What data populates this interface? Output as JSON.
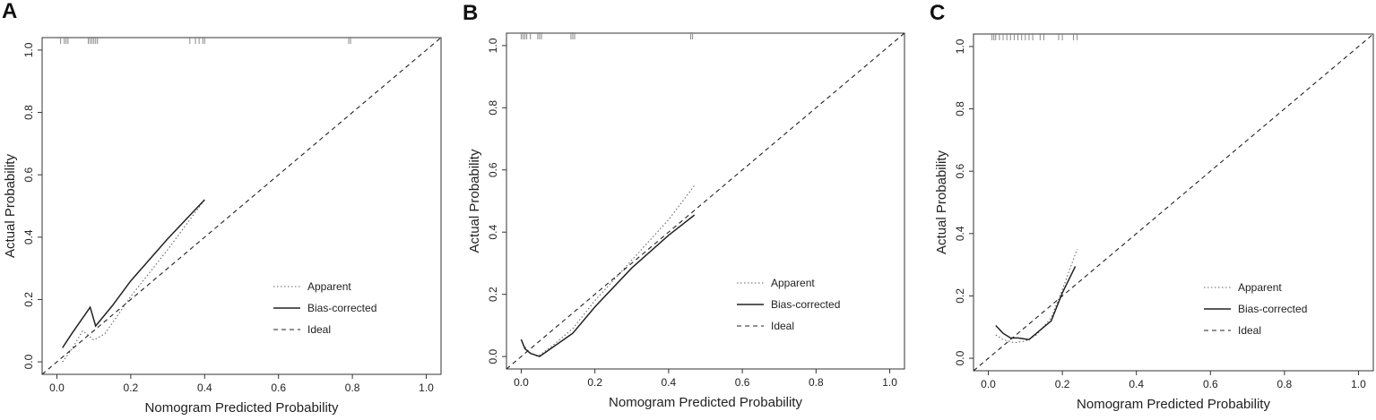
{
  "figure": {
    "panels": [
      {
        "letter": "A"
      },
      {
        "letter": "B"
      },
      {
        "letter": "C"
      }
    ]
  },
  "chart_data": [
    {
      "type": "line",
      "panel": "A",
      "xlabel": "Nomogram Predicted Probability",
      "ylabel": "Actual Probability",
      "xlim": [
        -0.04,
        1.04
      ],
      "ylim": [
        -0.04,
        1.04
      ],
      "xticks": [
        0.0,
        0.2,
        0.4,
        0.6,
        0.8,
        1.0
      ],
      "yticks": [
        0.0,
        0.2,
        0.4,
        0.6,
        0.8,
        1.0
      ],
      "xtick_labels": [
        "0.0",
        "0.2",
        "0.4",
        "0.6",
        "0.8",
        "1.0"
      ],
      "ytick_labels": [
        "0.0",
        "0.2",
        "0.4",
        "0.6",
        "0.8",
        "1.0"
      ],
      "legend_position": "bottom-right",
      "series": [
        {
          "name": "Apparent",
          "style": "dotted",
          "x": [
            0.015,
            0.04,
            0.07,
            0.1,
            0.13,
            0.2,
            0.3,
            0.4
          ],
          "y": [
            0.0,
            0.04,
            0.1,
            0.07,
            0.09,
            0.21,
            0.36,
            0.52
          ]
        },
        {
          "name": "Bias-corrected",
          "style": "solid",
          "x": [
            0.015,
            0.04,
            0.09,
            0.105,
            0.15,
            0.2,
            0.3,
            0.4
          ],
          "y": [
            0.045,
            0.09,
            0.175,
            0.115,
            0.18,
            0.26,
            0.395,
            0.52
          ]
        },
        {
          "name": "Ideal",
          "style": "dashed",
          "x": [
            -0.04,
            1.04
          ],
          "y": [
            -0.04,
            1.04
          ]
        }
      ],
      "rug": [
        0.01,
        0.02,
        0.025,
        0.03,
        0.085,
        0.09,
        0.095,
        0.1,
        0.105,
        0.11,
        0.36,
        0.375,
        0.385,
        0.395,
        0.4,
        0.79,
        0.795
      ]
    },
    {
      "type": "line",
      "panel": "B",
      "xlabel": "Nomogram Predicted Probability",
      "ylabel": "Actual Probability",
      "xlim": [
        -0.04,
        1.04
      ],
      "ylim": [
        -0.04,
        1.04
      ],
      "xticks": [
        0.0,
        0.2,
        0.4,
        0.6,
        0.8,
        1.0
      ],
      "yticks": [
        0.0,
        0.2,
        0.4,
        0.6,
        0.8,
        1.0
      ],
      "xtick_labels": [
        "0.0",
        "0.2",
        "0.4",
        "0.6",
        "0.8",
        "1.0"
      ],
      "ytick_labels": [
        "0.0",
        "0.2",
        "0.4",
        "0.6",
        "0.8",
        "1.0"
      ],
      "legend_position": "bottom-right",
      "series": [
        {
          "name": "Apparent",
          "style": "dotted",
          "x": [
            0.005,
            0.02,
            0.045,
            0.08,
            0.14,
            0.2,
            0.3,
            0.4,
            0.47
          ],
          "y": [
            0.04,
            0.015,
            0.0,
            0.03,
            0.09,
            0.18,
            0.31,
            0.44,
            0.55
          ]
        },
        {
          "name": "Bias-corrected",
          "style": "solid",
          "x": [
            0.0,
            0.01,
            0.025,
            0.05,
            0.08,
            0.14,
            0.2,
            0.3,
            0.4,
            0.47
          ],
          "y": [
            0.055,
            0.025,
            0.01,
            0.0,
            0.025,
            0.075,
            0.16,
            0.285,
            0.39,
            0.455
          ]
        },
        {
          "name": "Ideal",
          "style": "dashed",
          "x": [
            -0.04,
            1.04
          ],
          "y": [
            -0.04,
            1.04
          ]
        }
      ],
      "rug": [
        0.0,
        0.005,
        0.01,
        0.015,
        0.025,
        0.045,
        0.05,
        0.055,
        0.135,
        0.14,
        0.145,
        0.46,
        0.465
      ]
    },
    {
      "type": "line",
      "panel": "C",
      "xlabel": "Nomogram Predicted Probability",
      "ylabel": "Actual Probability",
      "xlim": [
        -0.04,
        1.04
      ],
      "ylim": [
        -0.04,
        1.04
      ],
      "xticks": [
        0.0,
        0.2,
        0.4,
        0.6,
        0.8,
        1.0
      ],
      "yticks": [
        0.0,
        0.2,
        0.4,
        0.6,
        0.8,
        1.0
      ],
      "xtick_labels": [
        "0.0",
        "0.2",
        "0.4",
        "0.6",
        "0.8",
        "1.0"
      ],
      "ytick_labels": [
        "0.0",
        "0.2",
        "0.4",
        "0.6",
        "0.8",
        "1.0"
      ],
      "legend_position": "bottom-right",
      "series": [
        {
          "name": "Apparent",
          "style": "dotted",
          "x": [
            0.02,
            0.04,
            0.07,
            0.1,
            0.13,
            0.17,
            0.2,
            0.24
          ],
          "y": [
            0.075,
            0.06,
            0.05,
            0.055,
            0.075,
            0.13,
            0.22,
            0.35
          ]
        },
        {
          "name": "Bias-corrected",
          "style": "solid",
          "x": [
            0.02,
            0.04,
            0.06,
            0.08,
            0.11,
            0.14,
            0.17,
            0.2,
            0.235
          ],
          "y": [
            0.105,
            0.08,
            0.065,
            0.065,
            0.06,
            0.09,
            0.12,
            0.21,
            0.295
          ]
        },
        {
          "name": "Ideal",
          "style": "dashed",
          "x": [
            -0.04,
            1.04
          ],
          "y": [
            -0.04,
            1.04
          ]
        }
      ],
      "rug": [
        0.01,
        0.015,
        0.02,
        0.03,
        0.04,
        0.05,
        0.06,
        0.07,
        0.08,
        0.09,
        0.1,
        0.11,
        0.12,
        0.14,
        0.15,
        0.19,
        0.2,
        0.23,
        0.24
      ]
    }
  ]
}
